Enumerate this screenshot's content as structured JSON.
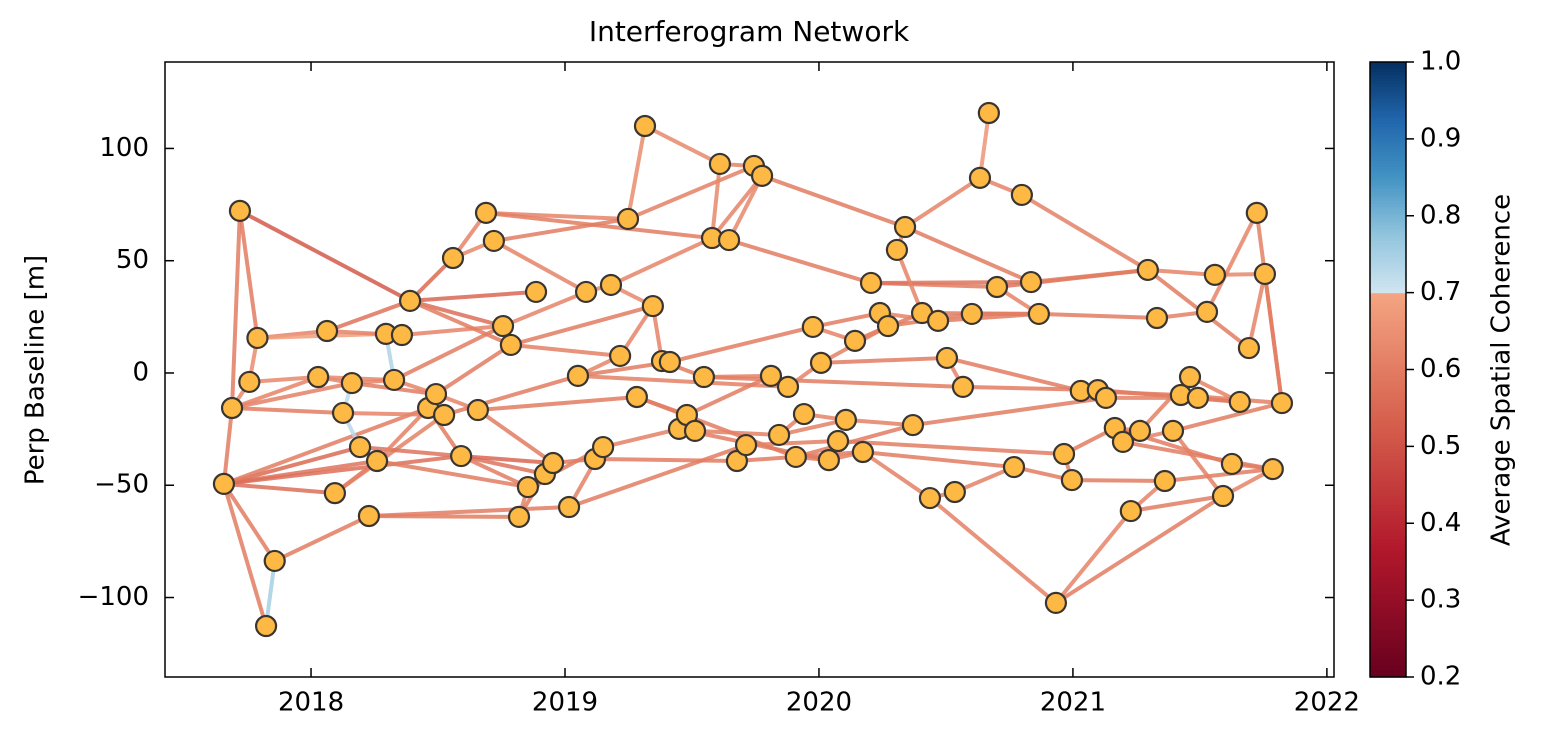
{
  "chart_data": {
    "type": "network",
    "title": "Interferogram Network",
    "ylabel": "Perp Baseline [m]",
    "colorbar_label": "Average Spatial Coherence",
    "colormap": "RdBu",
    "color_split": 0.7,
    "node_color": "#fdb944",
    "xlim": [
      2017.425,
      2022.028
    ],
    "ylim": [
      -135.4,
      138.5
    ],
    "xticks": [
      2018,
      2019,
      2020,
      2021,
      2022
    ],
    "yticks": [
      {
        "value": -100,
        "label": "−100"
      },
      {
        "value": -50,
        "label": "−50"
      },
      0,
      50,
      100
    ],
    "clim": [
      0.2,
      1.0
    ],
    "cticks": [
      0.2,
      0.3,
      0.4,
      0.5,
      0.6,
      0.7,
      0.8,
      0.9,
      {
        "value": 1.0,
        "label": "1.0"
      }
    ],
    "x": [
      2017.657,
      2017.689,
      2017.72,
      2017.757,
      2017.789,
      2017.857,
      2017.823,
      2018.028,
      2018.063,
      2018.094,
      2018.126,
      2018.161,
      2018.193,
      2018.228,
      2018.26,
      2018.295,
      2018.327,
      2018.358,
      2018.39,
      2018.461,
      2018.492,
      2018.524,
      2018.559,
      2018.591,
      2018.657,
      2018.689,
      2018.72,
      2018.756,
      2018.787,
      2018.819,
      2018.854,
      2018.886,
      2018.921,
      2018.953,
      2019.016,
      2019.051,
      2019.083,
      2019.118,
      2019.15,
      2019.181,
      2019.217,
      2019.248,
      2019.283,
      2019.315,
      2019.346,
      2019.382,
      2019.413,
      2019.449,
      2019.48,
      2019.512,
      2019.547,
      2019.579,
      2019.61,
      2019.646,
      2019.677,
      2019.713,
      2019.744,
      2019.776,
      2019.811,
      2019.843,
      2019.878,
      2019.909,
      2019.941,
      2019.976,
      2020.008,
      2020.039,
      2020.075,
      2020.106,
      2020.142,
      2020.173,
      2020.205,
      2020.24,
      2020.272,
      2020.307,
      2020.339,
      2020.37,
      2020.406,
      2020.437,
      2020.469,
      2020.504,
      2020.535,
      2020.567,
      2020.602,
      2020.634,
      2020.669,
      2020.701,
      2020.768,
      2020.799,
      2020.835,
      2020.866,
      2020.933,
      2020.965,
      2020.996,
      2021.031,
      2021.098,
      2021.13,
      2021.165,
      2021.197,
      2021.228,
      2021.264,
      2021.295,
      2021.331,
      2021.362,
      2021.394,
      2021.425,
      2021.461,
      2021.492,
      2021.528,
      2021.559,
      2021.591,
      2021.626,
      2021.657,
      2021.693,
      2021.724,
      2021.756,
      2021.787,
      2021.823
    ],
    "y": [
      -49.4,
      -15.6,
      72.2,
      -4,
      15.6,
      -83.7,
      -112.7,
      -1.8,
      18.7,
      -53.5,
      -17.8,
      -4.5,
      -33,
      -63.7,
      -39.2,
      17.4,
      -3.1,
      16.9,
      32.1,
      -15.6,
      -9.4,
      -18.7,
      51.2,
      -37,
      -16.5,
      71.3,
      58.8,
      20.9,
      12.5,
      -64.1,
      -50.8,
      36.1,
      -45,
      -40.1,
      -59.7,
      -1.3,
      36.1,
      -38.3,
      -33,
      39.2,
      7.6,
      68.6,
      -10.7,
      110,
      29.8,
      5.3,
      4.9,
      -24.9,
      -18.7,
      -25.8,
      -1.8,
      60.1,
      93.1,
      59.2,
      -39.2,
      -32.1,
      92.2,
      87.8,
      -1.3,
      -27.6,
      -6.2,
      -37.4,
      -18.3,
      20.5,
      4.5,
      -38.8,
      -30.3,
      -20.9,
      14.3,
      -35.2,
      40.1,
      26.7,
      20.9,
      54.8,
      65,
      -23.2,
      26.7,
      -55.7,
      23.2,
      6.7,
      -53,
      -6.2,
      26.3,
      86.9,
      115.8,
      38.3,
      -41.9,
      79.3,
      40.5,
      26.3,
      -102.4,
      -36.1,
      -47.7,
      -8,
      -7.6,
      -11.1,
      -24.5,
      -30.7,
      -61.5,
      -25.8,
      45.9,
      24.5,
      -48.1,
      -25.8,
      -9.8,
      -1.8,
      -11.1,
      27.2,
      43.7,
      -54.8,
      -40.5,
      -12.9,
      11.1,
      71.3,
      44.1,
      -42.8,
      -13.4
    ],
    "edges": [
      [
        0,
        1,
        0.6
      ],
      [
        0,
        5,
        0.6
      ],
      [
        0,
        6,
        0.6
      ],
      [
        0,
        9,
        0.57
      ],
      [
        0,
        12,
        0.56
      ],
      [
        0,
        14,
        0.58
      ],
      [
        0,
        23,
        0.57
      ],
      [
        0,
        19,
        0.6
      ],
      [
        1,
        2,
        0.6
      ],
      [
        1,
        3,
        0.63
      ],
      [
        1,
        7,
        0.62
      ],
      [
        1,
        10,
        0.6
      ],
      [
        1,
        11,
        0.61
      ],
      [
        2,
        4,
        0.6
      ],
      [
        2,
        18,
        0.52
      ],
      [
        3,
        4,
        0.64
      ],
      [
        3,
        7,
        0.63
      ],
      [
        4,
        8,
        0.62
      ],
      [
        4,
        15,
        0.68
      ],
      [
        5,
        6,
        0.75
      ],
      [
        5,
        13,
        0.6
      ],
      [
        7,
        11,
        0.62
      ],
      [
        7,
        16,
        0.63
      ],
      [
        8,
        18,
        0.58
      ],
      [
        8,
        17,
        0.62
      ],
      [
        9,
        14,
        0.6
      ],
      [
        9,
        21,
        0.61
      ],
      [
        10,
        11,
        0.72
      ],
      [
        10,
        12,
        0.73
      ],
      [
        10,
        21,
        0.62
      ],
      [
        11,
        16,
        0.62
      ],
      [
        11,
        20,
        0.6
      ],
      [
        12,
        14,
        0.62
      ],
      [
        12,
        23,
        0.58
      ],
      [
        13,
        29,
        0.6
      ],
      [
        13,
        34,
        0.6
      ],
      [
        14,
        19,
        0.61
      ],
      [
        14,
        30,
        0.6
      ],
      [
        15,
        16,
        0.74
      ],
      [
        15,
        17,
        0.62
      ],
      [
        16,
        20,
        0.62
      ],
      [
        16,
        27,
        0.6
      ],
      [
        17,
        27,
        0.62
      ],
      [
        18,
        22,
        0.56
      ],
      [
        18,
        31,
        0.55
      ],
      [
        18,
        27,
        0.57
      ],
      [
        18,
        28,
        0.6
      ],
      [
        19,
        21,
        0.62
      ],
      [
        19,
        23,
        0.6
      ],
      [
        20,
        24,
        0.62
      ],
      [
        20,
        28,
        0.6
      ],
      [
        21,
        35,
        0.6
      ],
      [
        22,
        26,
        0.63
      ],
      [
        22,
        25,
        0.62
      ],
      [
        23,
        32,
        0.58
      ],
      [
        23,
        30,
        0.6
      ],
      [
        23,
        33,
        0.55
      ],
      [
        24,
        33,
        0.6
      ],
      [
        24,
        42,
        0.6
      ],
      [
        25,
        41,
        0.62
      ],
      [
        25,
        53,
        0.6
      ],
      [
        26,
        36,
        0.62
      ],
      [
        26,
        41,
        0.6
      ],
      [
        27,
        36,
        0.62
      ],
      [
        28,
        40,
        0.61
      ],
      [
        28,
        44,
        0.6
      ],
      [
        29,
        30,
        0.62
      ],
      [
        29,
        32,
        0.6
      ],
      [
        30,
        38,
        0.6
      ],
      [
        32,
        33,
        0.72
      ],
      [
        33,
        37,
        0.6
      ],
      [
        34,
        38,
        0.61
      ],
      [
        34,
        55,
        0.6
      ],
      [
        35,
        40,
        0.62
      ],
      [
        35,
        46,
        0.6
      ],
      [
        35,
        60,
        0.61
      ],
      [
        36,
        39,
        0.63
      ],
      [
        37,
        54,
        0.6
      ],
      [
        38,
        47,
        0.61
      ],
      [
        39,
        51,
        0.62
      ],
      [
        39,
        44,
        0.63
      ],
      [
        40,
        44,
        0.62
      ],
      [
        41,
        56,
        0.61
      ],
      [
        41,
        43,
        0.64
      ],
      [
        42,
        48,
        0.6
      ],
      [
        42,
        61,
        0.6
      ],
      [
        43,
        52,
        0.63
      ],
      [
        44,
        45,
        0.62
      ],
      [
        45,
        50,
        0.6
      ],
      [
        45,
        46,
        0.63
      ],
      [
        46,
        63,
        0.6
      ],
      [
        47,
        49,
        0.62
      ],
      [
        47,
        65,
        0.6
      ],
      [
        48,
        58,
        0.6
      ],
      [
        49,
        59,
        0.61
      ],
      [
        50,
        58,
        0.61
      ],
      [
        50,
        81,
        0.6
      ],
      [
        51,
        52,
        0.63
      ],
      [
        51,
        57,
        0.62
      ],
      [
        52,
        56,
        0.62
      ],
      [
        53,
        57,
        0.63
      ],
      [
        53,
        70,
        0.6
      ],
      [
        54,
        55,
        0.62
      ],
      [
        54,
        69,
        0.6
      ],
      [
        55,
        66,
        0.61
      ],
      [
        56,
        57,
        0.62
      ],
      [
        57,
        74,
        0.6
      ],
      [
        58,
        60,
        0.62
      ],
      [
        59,
        67,
        0.61
      ],
      [
        60,
        64,
        0.62
      ],
      [
        61,
        65,
        0.6
      ],
      [
        61,
        75,
        0.6
      ],
      [
        62,
        67,
        0.62
      ],
      [
        62,
        59,
        0.61
      ],
      [
        63,
        71,
        0.6
      ],
      [
        63,
        68,
        0.62
      ],
      [
        64,
        79,
        0.6
      ],
      [
        64,
        72,
        0.61
      ],
      [
        65,
        69,
        0.61
      ],
      [
        66,
        91,
        0.6
      ],
      [
        67,
        75,
        0.61
      ],
      [
        68,
        76,
        0.6
      ],
      [
        68,
        72,
        0.62
      ],
      [
        69,
        86,
        0.6
      ],
      [
        69,
        77,
        0.61
      ],
      [
        70,
        85,
        0.6
      ],
      [
        70,
        88,
        0.58
      ],
      [
        71,
        78,
        0.62
      ],
      [
        72,
        82,
        0.6
      ],
      [
        73,
        74,
        0.63
      ],
      [
        73,
        76,
        0.62
      ],
      [
        74,
        83,
        0.62
      ],
      [
        74,
        88,
        0.6
      ],
      [
        75,
        95,
        0.6
      ],
      [
        76,
        89,
        0.6
      ],
      [
        77,
        80,
        0.62
      ],
      [
        77,
        90,
        0.61
      ],
      [
        78,
        89,
        0.6
      ],
      [
        79,
        81,
        0.62
      ],
      [
        79,
        93,
        0.6
      ],
      [
        80,
        86,
        0.61
      ],
      [
        81,
        94,
        0.6
      ],
      [
        82,
        89,
        0.6
      ],
      [
        83,
        84,
        0.66
      ],
      [
        83,
        87,
        0.62
      ],
      [
        85,
        89,
        0.62
      ],
      [
        85,
        100,
        0.58
      ],
      [
        86,
        92,
        0.6
      ],
      [
        87,
        100,
        0.61
      ],
      [
        88,
        100,
        0.6
      ],
      [
        89,
        101,
        0.6
      ],
      [
        90,
        98,
        0.62
      ],
      [
        91,
        96,
        0.6
      ],
      [
        92,
        102,
        0.6
      ],
      [
        93,
        95,
        0.63
      ],
      [
        93,
        104,
        0.6
      ],
      [
        94,
        111,
        0.6
      ],
      [
        95,
        106,
        0.61
      ],
      [
        96,
        99,
        0.62
      ],
      [
        96,
        110,
        0.6
      ],
      [
        97,
        103,
        0.61
      ],
      [
        97,
        115,
        0.6
      ],
      [
        98,
        102,
        0.62
      ],
      [
        98,
        109,
        0.6
      ],
      [
        99,
        105,
        0.61
      ],
      [
        100,
        108,
        0.62
      ],
      [
        100,
        112,
        0.6
      ],
      [
        101,
        107,
        0.61
      ],
      [
        102,
        115,
        0.6
      ],
      [
        103,
        109,
        0.61
      ],
      [
        103,
        116,
        0.6
      ],
      [
        104,
        116,
        0.61
      ],
      [
        105,
        111,
        0.62
      ],
      [
        106,
        111,
        0.6
      ],
      [
        107,
        113,
        0.62
      ],
      [
        108,
        114,
        0.63
      ],
      [
        110,
        115,
        0.6
      ],
      [
        112,
        114,
        0.62
      ],
      [
        113,
        116,
        0.61
      ],
      [
        114,
        116,
        0.6
      ],
      [
        109,
        115,
        0.62
      ],
      [
        91,
        92,
        0.61
      ],
      [
        90,
        109,
        0.6
      ]
    ]
  }
}
